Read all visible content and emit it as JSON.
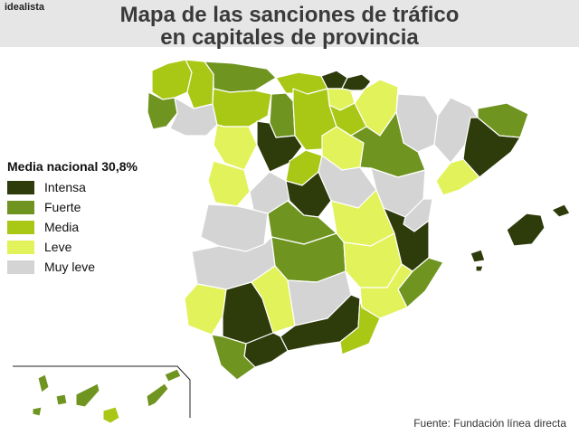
{
  "header": {
    "brand": "idealista",
    "title_line1": "Mapa de las sanciones de tráfico",
    "title_line2": "en capitales de provincia"
  },
  "legend": {
    "title": "Media nacional 30,8%",
    "items": [
      {
        "label": "Intensa",
        "color": "#2e3b0b"
      },
      {
        "label": "Fuerte",
        "color": "#6f9420"
      },
      {
        "label": "Media",
        "color": "#a9c715"
      },
      {
        "label": "Leve",
        "color": "#e2f25a"
      },
      {
        "label": "Muy leve",
        "color": "#d4d4d4"
      }
    ]
  },
  "source": "Fuente: Fundación línea directa",
  "colors": {
    "border": "#ffffff",
    "background": "#ffffff",
    "header_band": "#e6e6e6"
  }
}
